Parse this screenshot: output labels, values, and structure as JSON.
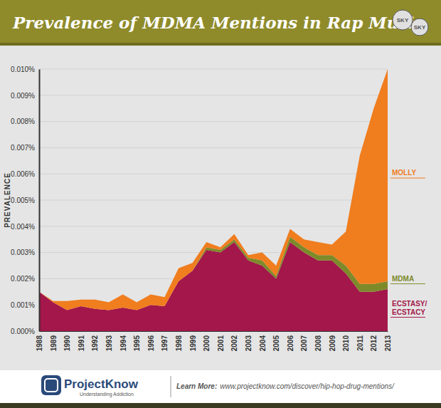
{
  "chart_data": {
    "type": "area",
    "stacked": true,
    "grid": true,
    "title": "Prevalence of MDMA Mentions in Rap Music",
    "y_label": "PREVALENCE",
    "logo_text": "SKY",
    "footer": {
      "brand": "ProjectKnow",
      "tagline": "Understanding Addiction",
      "learn_more": "Learn More:",
      "url": "www.projectknow.com/discover/hip-hop-drug-mentions/"
    },
    "x": [
      1988,
      1989,
      1990,
      1991,
      1992,
      1993,
      1994,
      1995,
      1996,
      1997,
      1998,
      1999,
      2000,
      2001,
      2002,
      2003,
      2004,
      2005,
      2006,
      2007,
      2008,
      2009,
      2010,
      2011,
      2012,
      2013
    ],
    "xlim": [
      1988,
      2013
    ],
    "xticks": [
      1988,
      1989,
      1990,
      1991,
      1992,
      1993,
      1994,
      1995,
      1996,
      1997,
      1998,
      1999,
      2000,
      2001,
      2002,
      2003,
      2004,
      2005,
      2006,
      2007,
      2008,
      2009,
      2010,
      2011,
      2012,
      2013
    ],
    "ylim": [
      0,
      0.01
    ],
    "yticks": [
      {
        "value": 0,
        "label": "0.000%"
      },
      {
        "value": 0.001,
        "label": "0.001%"
      },
      {
        "value": 0.002,
        "label": "0.002%"
      },
      {
        "value": 0.003,
        "label": "0.003%"
      },
      {
        "value": 0.004,
        "label": "0.004%"
      },
      {
        "value": 0.005,
        "label": "0.005%"
      },
      {
        "value": 0.006,
        "label": "0.006%"
      },
      {
        "value": 0.007,
        "label": "0.007%"
      },
      {
        "value": 0.008,
        "label": "0.008%"
      },
      {
        "value": 0.009,
        "label": "0.009%"
      },
      {
        "value": 0.01,
        "label": "0.010%"
      }
    ],
    "series": [
      {
        "name": "ECSTASY/ECSTACY",
        "color": "#a3174a",
        "values": [
          0.0015,
          0.0011,
          0.0008,
          0.00095,
          0.00085,
          0.0008,
          0.0009,
          0.0008,
          0.001,
          0.00095,
          0.0019,
          0.0023,
          0.0031,
          0.003,
          0.0034,
          0.0027,
          0.0025,
          0.002,
          0.0034,
          0.003,
          0.0027,
          0.0027,
          0.0022,
          0.0015,
          0.0015,
          0.0016
        ]
      },
      {
        "name": "MDMA",
        "color": "#7d8a2a",
        "values": [
          0,
          0,
          0,
          0,
          0,
          0,
          0,
          0,
          0,
          0,
          0,
          0,
          0.0001,
          0.0001,
          0.0001,
          0.0001,
          0.0002,
          0.0001,
          0.0002,
          0.0002,
          0.0002,
          0.0002,
          0.0003,
          0.0003,
          0.0003,
          0.0003
        ]
      },
      {
        "name": "MOLLY",
        "color": "#f07d1e",
        "values": [
          0,
          5e-05,
          0.00035,
          0.00025,
          0.00035,
          0.0003,
          0.0005,
          0.0003,
          0.0004,
          0.00035,
          0.0005,
          0.0003,
          0.0002,
          0.0001,
          0.0002,
          0.0001,
          0.0003,
          0.0004,
          0.0003,
          0.0003,
          0.0005,
          0.0004,
          0.0013,
          0.0049,
          0.0067,
          0.0081
        ]
      }
    ]
  }
}
